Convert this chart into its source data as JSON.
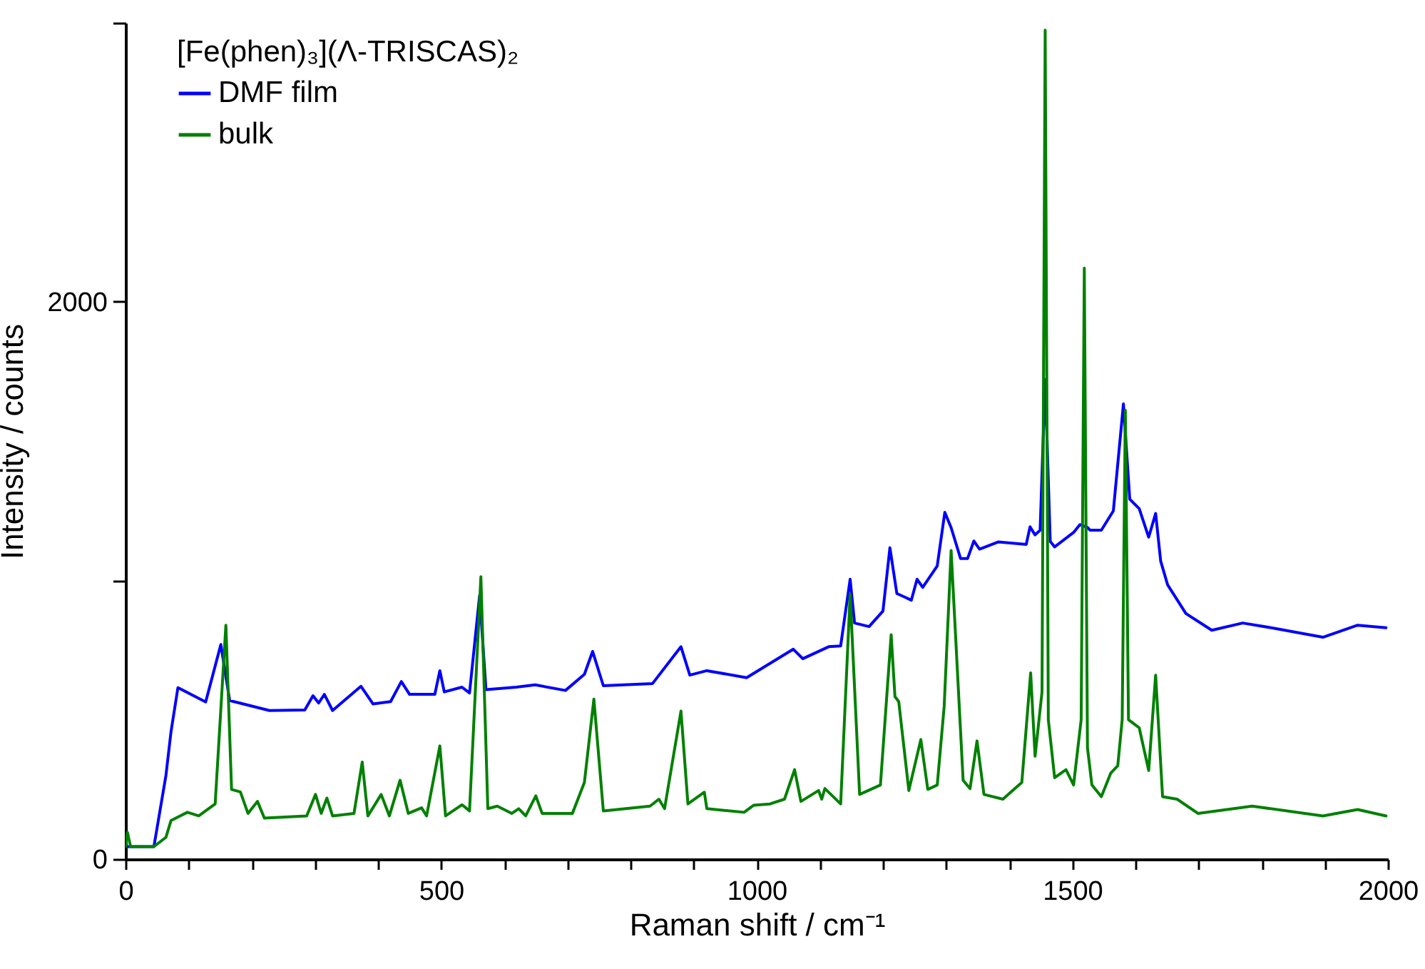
{
  "chart_data": {
    "type": "line",
    "xlabel": "Raman shift / cm⁻¹",
    "ylabel": "Intensity / counts",
    "legend_title": "[Fe(phen)₃](Λ-TRISCAS)₂",
    "xlim": [
      0,
      2000
    ],
    "ylim": [
      0,
      3000
    ],
    "xticks": [
      0,
      {
        "value": 100,
        "label": null
      },
      {
        "value": 200,
        "label": null
      },
      {
        "value": 300,
        "label": null
      },
      {
        "value": 400,
        "label": null
      },
      500,
      {
        "value": 600,
        "label": null
      },
      {
        "value": 700,
        "label": null
      },
      {
        "value": 800,
        "label": null
      },
      {
        "value": 900,
        "label": null
      },
      1000,
      {
        "value": 1100,
        "label": null
      },
      {
        "value": 1200,
        "label": null
      },
      {
        "value": 1300,
        "label": null
      },
      {
        "value": 1400,
        "label": null
      },
      1500,
      {
        "value": 1600,
        "label": null
      },
      {
        "value": 1700,
        "label": null
      },
      {
        "value": 1800,
        "label": null
      },
      {
        "value": 1900,
        "label": null
      },
      2000
    ],
    "yticks": [
      0,
      {
        "value": 1000,
        "label": null
      },
      2000,
      {
        "value": 3000,
        "label": null
      }
    ],
    "legend": "top left",
    "grid": false,
    "marker": "none",
    "line_style": "solid",
    "series": [
      {
        "name": "DMF film",
        "color": "#0000ff",
        "x": [
          3,
          45,
          64,
          72,
          83,
          127,
          151,
          165,
          228,
          284,
          297,
          306,
          315,
          328,
          373,
          392,
          420,
          437,
          450,
          490,
          498,
          505,
          533,
          545,
          561,
          571,
          619,
          649,
          697,
          727,
          740,
          757,
          835,
          880,
          894,
          921,
          984,
          1058,
          1073,
          1114,
          1133,
          1148,
          1155,
          1178,
          1200,
          1211,
          1222,
          1245,
          1254,
          1263,
          1286,
          1298,
          1308,
          1323,
          1334,
          1344,
          1353,
          1383,
          1427,
          1433,
          1441,
          1449,
          1457,
          1465,
          1472,
          1502,
          1512,
          1524,
          1528,
          1546,
          1565,
          1581,
          1591,
          1606,
          1621,
          1632,
          1640,
          1651,
          1680,
          1721,
          1770,
          1815,
          1897,
          1952,
          1997
        ],
        "values": [
          45,
          45,
          300,
          456,
          615,
          564,
          770,
          569,
          533,
          535,
          586,
          560,
          591,
          533,
          620,
          557,
          565,
          637,
          591,
          591,
          676,
          600,
          617,
          596,
          946,
          608,
          617,
          625,
          605,
          663,
          745,
          622,
          630,
          762,
          660,
          676,
          651,
          753,
          719,
          762,
          765,
          1004,
          847,
          834,
          890,
          1117,
          953,
          929,
          1004,
          975,
          1052,
          1244,
          1189,
          1078,
          1078,
          1141,
          1112,
          1138,
          1129,
          1192,
          1163,
          1180,
          1720,
          1140,
          1120,
          1172,
          1200,
          1190,
          1180,
          1180,
          1249,
          1633,
          1291,
          1257,
          1155,
          1240,
          1069,
          984,
          881,
          821,
          847,
          830,
          796,
          839,
          830
        ]
      },
      {
        "name": "bulk",
        "color": "#008000",
        "x": [
          0,
          3,
          8,
          45,
          64,
          72,
          98,
          116,
          142,
          159,
          168,
          182,
          194,
          209,
          220,
          287,
          301,
          310,
          319,
          328,
          362,
          375,
          384,
          405,
          418,
          435,
          448,
          469,
          477,
          498,
          507,
          533,
          545,
          563,
          574,
          589,
          612,
          623,
          634,
          650,
          660,
          708,
          727,
          742,
          757,
          831,
          845,
          854,
          880,
          891,
          917,
          921,
          980,
          995,
          1021,
          1044,
          1060,
          1070,
          1098,
          1103,
          1108,
          1133,
          1148,
          1163,
          1196,
          1213,
          1219,
          1225,
          1241,
          1260,
          1271,
          1286,
          1297,
          1308,
          1327,
          1338,
          1349,
          1360,
          1390,
          1420,
          1434,
          1441,
          1452,
          1457,
          1462,
          1472,
          1490,
          1502,
          1514,
          1519,
          1524,
          1531,
          1546,
          1561,
          1572,
          1579,
          1584,
          1589,
          1606,
          1621,
          1632,
          1643,
          1666,
          1699,
          1785,
          1897,
          1952,
          1997
        ],
        "values": [
          45,
          96,
          45,
          45,
          78,
          138,
          168,
          155,
          198,
          839,
          250,
          241,
          164,
          207,
          147,
          155,
          232,
          164,
          219,
          155,
          164,
          348,
          155,
          232,
          155,
          283,
          164,
          184,
          155,
          406,
          155,
          195,
          173,
          1013,
          181,
          190,
          164,
          181,
          155,
          227,
          164,
          164,
          275,
          574,
          173,
          190,
          215,
          181,
          531,
          198,
          240,
          181,
          168,
          193,
          198,
          215,
          321,
          207,
          246,
          215,
          253,
          198,
          950,
          232,
          266,
          805,
          583,
          565,
          246,
          429,
          250,
          266,
          548,
          1107,
          283,
          253,
          424,
          232,
          215,
          275,
          668,
          369,
          600,
          2974,
          500,
          292,
          321,
          266,
          500,
          2120,
          400,
          266,
          224,
          309,
          335,
          500,
          1610,
          500,
          471,
          318,
          660,
          224,
          215,
          164,
          190,
          155,
          178,
          155
        ]
      }
    ]
  }
}
